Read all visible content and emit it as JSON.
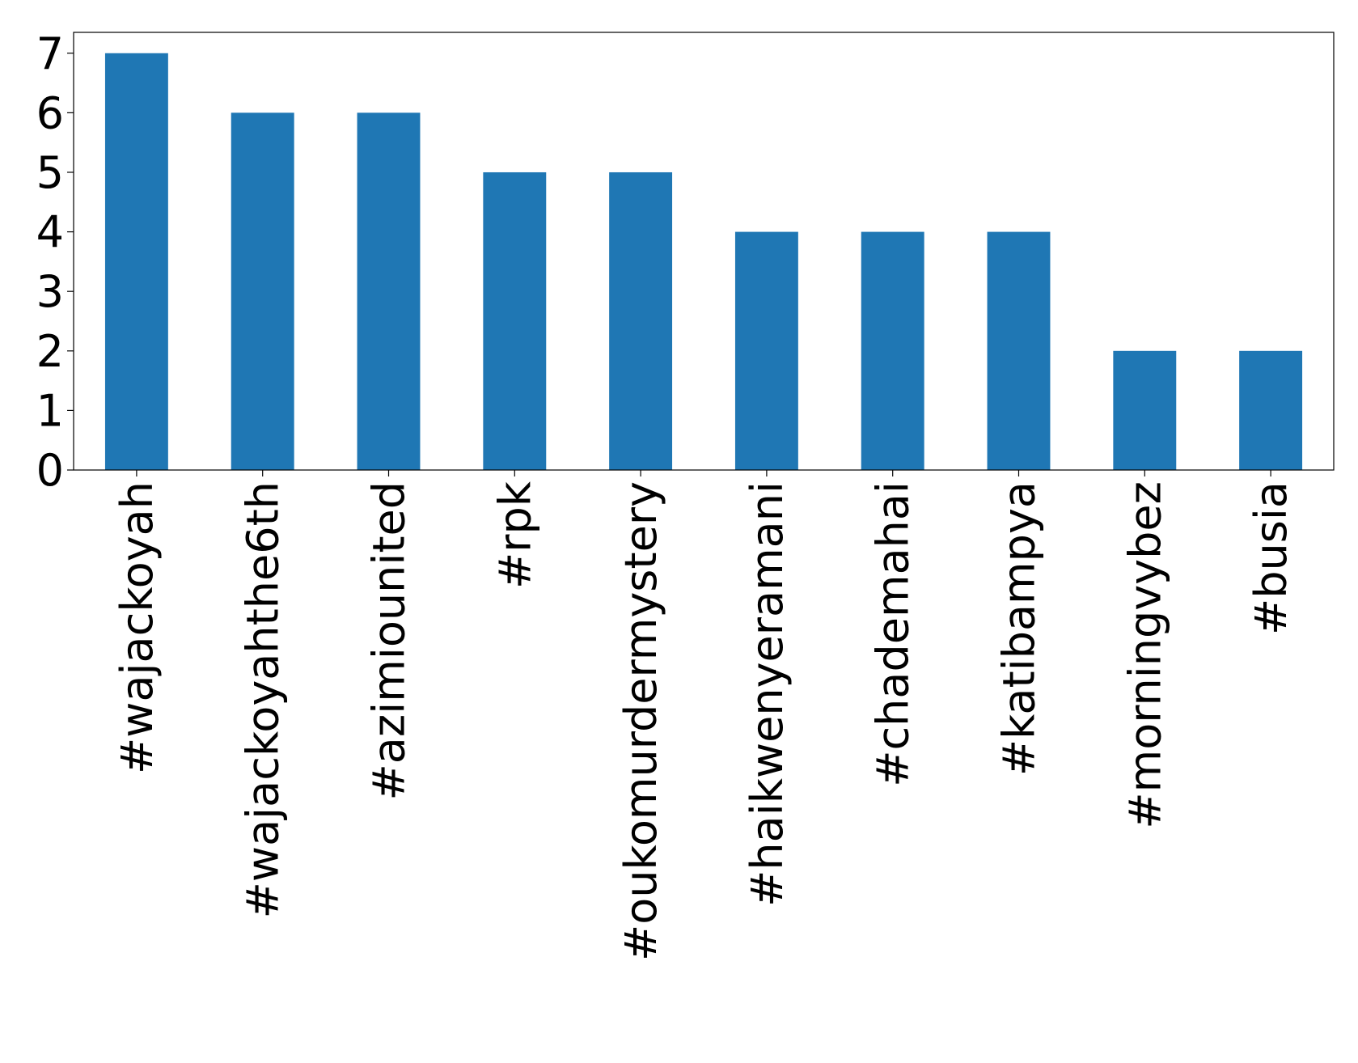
{
  "chart_data": {
    "type": "bar",
    "categories": [
      "#wajackoyah",
      "#wajackoyahthe6th",
      "#azimiounited",
      "#rpk",
      "#oukomurdermystery",
      "#haikwenyeramani",
      "#chademahai",
      "#katibampya",
      "#morningvybez",
      "#busia"
    ],
    "values": [
      7,
      6,
      6,
      5,
      5,
      4,
      4,
      4,
      2,
      2
    ],
    "color": "#1f77b4",
    "ylim": [
      0,
      7.35
    ],
    "yticks": [
      0,
      1,
      2,
      3,
      4,
      5,
      6,
      7
    ],
    "grid": false
  }
}
